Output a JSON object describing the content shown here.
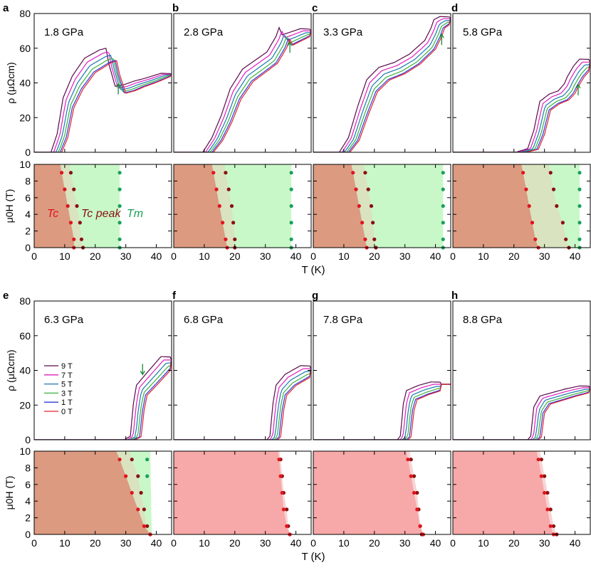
{
  "figure": {
    "rho_label": "ρ (μΩcm)",
    "field_label": "μ0H (T)",
    "t_label": "T (K)",
    "legend": [
      "9 T",
      "7 T",
      "5 T",
      "3 T",
      "1 T",
      "0 T"
    ],
    "phase_labels": {
      "tc": "Tc",
      "tcpeak": "Tc peak",
      "tm": "Tm"
    }
  },
  "chart_data": [
    {
      "panel": "a",
      "type": "line",
      "pressure": "1.8 GPa",
      "xlabel": "T (K)",
      "ylabel": "ρ (μΩcm)",
      "xlim": [
        0,
        45
      ],
      "ylim": [
        0,
        80
      ],
      "field_T": [
        9,
        7,
        5,
        3,
        1,
        0
      ],
      "curve_points": [
        [
          0,
          0
        ],
        [
          9,
          0
        ],
        [
          11,
          10
        ],
        [
          13,
          30
        ],
        [
          16,
          42
        ],
        [
          20,
          52
        ],
        [
          25,
          57
        ],
        [
          27,
          58
        ],
        [
          28,
          49
        ],
        [
          30,
          37
        ],
        [
          33,
          38
        ],
        [
          36,
          40
        ],
        [
          40,
          42
        ],
        [
          45,
          45
        ]
      ],
      "Tc": [
        [
          9,
          9
        ],
        [
          7,
          10
        ],
        [
          5,
          11
        ],
        [
          3,
          12
        ],
        [
          1,
          13
        ],
        [
          0,
          13
        ]
      ],
      "Tc_peak": [
        [
          9,
          12
        ],
        [
          7,
          13
        ],
        [
          5,
          14
        ],
        [
          3,
          15
        ],
        [
          1,
          15.5
        ],
        [
          0,
          16
        ]
      ],
      "Tm": [
        [
          9,
          28
        ],
        [
          7,
          28
        ],
        [
          5,
          28
        ],
        [
          3,
          28
        ],
        [
          1,
          28
        ],
        [
          0,
          28
        ]
      ]
    },
    {
      "panel": "b",
      "type": "line",
      "pressure": "2.8 GPa",
      "xlabel": "T (K)",
      "ylabel": "ρ (μΩcm)",
      "xlim": [
        0,
        45
      ],
      "ylim": [
        0,
        80
      ],
      "field_T": [
        9,
        7,
        5,
        3,
        1,
        0
      ],
      "curve_points": [
        [
          0,
          0
        ],
        [
          13,
          0
        ],
        [
          16,
          8
        ],
        [
          19,
          20
        ],
        [
          22,
          35
        ],
        [
          26,
          46
        ],
        [
          30,
          51
        ],
        [
          34,
          56
        ],
        [
          37,
          65
        ],
        [
          38,
          70
        ],
        [
          39,
          66
        ],
        [
          42,
          68
        ],
        [
          45,
          70
        ]
      ],
      "Tc": [
        [
          9,
          13
        ],
        [
          7,
          14
        ],
        [
          5,
          15
        ],
        [
          3,
          16
        ],
        [
          1,
          17
        ],
        [
          0,
          17.5
        ]
      ],
      "Tc_peak": [
        [
          9,
          17
        ],
        [
          7,
          18
        ],
        [
          5,
          19
        ],
        [
          3,
          19.5
        ],
        [
          1,
          20
        ],
        [
          0,
          20
        ]
      ],
      "Tm": [
        [
          9,
          38.5
        ],
        [
          7,
          38.5
        ],
        [
          5,
          38.5
        ],
        [
          3,
          38.5
        ],
        [
          1,
          38.5
        ],
        [
          0,
          38.5
        ]
      ]
    },
    {
      "panel": "c",
      "type": "line",
      "pressure": "3.3 GPa",
      "xlabel": "T (K)",
      "ylabel": "ρ (μΩcm)",
      "xlim": [
        0,
        45
      ],
      "ylim": [
        0,
        80
      ],
      "field_T": [
        9,
        7,
        5,
        3,
        1,
        0
      ],
      "curve_points": [
        [
          0,
          0
        ],
        [
          12,
          0
        ],
        [
          15,
          8
        ],
        [
          18,
          25
        ],
        [
          21,
          40
        ],
        [
          25,
          47
        ],
        [
          30,
          50
        ],
        [
          35,
          55
        ],
        [
          40,
          63
        ],
        [
          42,
          70
        ],
        [
          43,
          75
        ],
        [
          45,
          77
        ]
      ],
      "Tc": [
        [
          9,
          13
        ],
        [
          7,
          14
        ],
        [
          5,
          15
        ],
        [
          3,
          16
        ],
        [
          1,
          17
        ],
        [
          0,
          17.5
        ]
      ],
      "Tc_peak": [
        [
          9,
          17
        ],
        [
          7,
          18
        ],
        [
          5,
          19
        ],
        [
          3,
          19.5
        ],
        [
          1,
          20
        ],
        [
          0,
          20.5
        ]
      ],
      "Tm": [
        [
          9,
          42.5
        ],
        [
          7,
          42.5
        ],
        [
          5,
          42.5
        ],
        [
          3,
          42.5
        ],
        [
          1,
          42.5
        ],
        [
          0,
          42.5
        ]
      ]
    },
    {
      "panel": "d",
      "type": "line",
      "pressure": "5.8 GPa",
      "xlabel": "T (K)",
      "ylabel": "ρ (μΩcm)",
      "xlim": [
        0,
        45
      ],
      "ylim": [
        0,
        80
      ],
      "field_T": [
        9,
        7,
        5,
        3,
        1,
        0
      ],
      "curve_points": [
        [
          0,
          0
        ],
        [
          24,
          0
        ],
        [
          28,
          2
        ],
        [
          30,
          12
        ],
        [
          32,
          28
        ],
        [
          35,
          32
        ],
        [
          38,
          34
        ],
        [
          40,
          38
        ],
        [
          41,
          42
        ],
        [
          43,
          48
        ],
        [
          45,
          52
        ]
      ],
      "Tc": [
        [
          9,
          23
        ],
        [
          7,
          24
        ],
        [
          5,
          25
        ],
        [
          3,
          26
        ],
        [
          1,
          27
        ],
        [
          0,
          28
        ]
      ],
      "Tc_peak": [
        [
          9,
          32
        ],
        [
          7,
          33
        ],
        [
          5,
          34
        ],
        [
          3,
          36
        ],
        [
          1,
          37
        ],
        [
          0,
          38
        ]
      ],
      "Tm": [
        [
          9,
          41.5
        ],
        [
          7,
          41.5
        ],
        [
          5,
          41.5
        ],
        [
          3,
          41.5
        ],
        [
          1,
          41.5
        ],
        [
          0,
          41.5
        ]
      ]
    },
    {
      "panel": "e",
      "type": "line",
      "pressure": "6.3 GPa",
      "xlabel": "T (K)",
      "ylabel": "ρ (μΩcm)",
      "xlim": [
        0,
        45
      ],
      "ylim": [
        0,
        80
      ],
      "field_T": [
        9,
        7,
        5,
        3,
        1,
        0
      ],
      "curve_points": [
        [
          0,
          0
        ],
        [
          33,
          0
        ],
        [
          35,
          2
        ],
        [
          36,
          20
        ],
        [
          37,
          30
        ],
        [
          40,
          36
        ],
        [
          43,
          42
        ],
        [
          45,
          46
        ]
      ],
      "Tc": [
        [
          9,
          28
        ],
        [
          7,
          30
        ],
        [
          5,
          32
        ],
        [
          3,
          34
        ],
        [
          1,
          36
        ],
        [
          0,
          38
        ]
      ],
      "Tc_peak": [
        [
          9,
          32
        ],
        [
          7,
          34
        ],
        [
          5,
          35
        ],
        [
          3,
          36
        ],
        [
          1,
          37
        ],
        [
          0,
          38
        ]
      ],
      "Tm": [
        [
          9,
          37
        ],
        [
          7,
          37
        ]
      ]
    },
    {
      "panel": "f",
      "type": "line",
      "pressure": "6.8 GPa",
      "xlabel": "T (K)",
      "ylabel": "ρ (μΩcm)",
      "xlim": [
        0,
        45
      ],
      "ylim": [
        0,
        80
      ],
      "field_T": [
        9,
        7,
        5,
        3,
        1,
        0
      ],
      "curve_points": [
        [
          0,
          0
        ],
        [
          34,
          0
        ],
        [
          35,
          2
        ],
        [
          36,
          20
        ],
        [
          37,
          30
        ],
        [
          40,
          36
        ],
        [
          43,
          39
        ],
        [
          45,
          41
        ]
      ],
      "Tc": [
        [
          9,
          34.5
        ],
        [
          7,
          35
        ],
        [
          5,
          35.5
        ],
        [
          3,
          36
        ],
        [
          1,
          37
        ],
        [
          0,
          38
        ]
      ],
      "Tc_peak": [
        [
          9,
          35
        ],
        [
          7,
          35.5
        ],
        [
          5,
          36
        ],
        [
          3,
          37
        ],
        [
          1,
          37.5
        ],
        [
          0,
          38
        ]
      ],
      "Tm": []
    },
    {
      "panel": "g",
      "type": "line",
      "pressure": "7.8 GPa",
      "xlabel": "T (K)",
      "ylabel": "ρ (μΩcm)",
      "xlim": [
        0,
        45
      ],
      "ylim": [
        0,
        80
      ],
      "field_T": [
        9,
        7,
        5,
        3,
        1,
        0
      ],
      "curve_points": [
        [
          0,
          0
        ],
        [
          31,
          0
        ],
        [
          32,
          2
        ],
        [
          33,
          20
        ],
        [
          34,
          27
        ],
        [
          38,
          30
        ],
        [
          42,
          32
        ]
      ],
      "Tc": [
        [
          9,
          31
        ],
        [
          7,
          32
        ],
        [
          5,
          33
        ],
        [
          3,
          34
        ],
        [
          1,
          35
        ],
        [
          0,
          36
        ]
      ],
      "Tc_peak": [
        [
          9,
          32
        ],
        [
          7,
          33
        ],
        [
          5,
          34
        ],
        [
          3,
          34.5
        ],
        [
          1,
          35
        ],
        [
          0,
          35.5
        ]
      ],
      "Tm": []
    },
    {
      "panel": "h",
      "type": "line",
      "pressure": "8.8 GPa",
      "xlabel": "T (K)",
      "ylabel": "ρ (μΩcm)",
      "xlim": [
        0,
        45
      ],
      "ylim": [
        0,
        80
      ],
      "field_T": [
        9,
        7,
        5,
        3,
        1,
        0
      ],
      "curve_points": [
        [
          0,
          0
        ],
        [
          28,
          0
        ],
        [
          29,
          2
        ],
        [
          30,
          18
        ],
        [
          32,
          24
        ],
        [
          36,
          26
        ],
        [
          40,
          28
        ],
        [
          45,
          30
        ]
      ],
      "Tc": [
        [
          9,
          28
        ],
        [
          7,
          29
        ],
        [
          5,
          30
        ],
        [
          3,
          31
        ],
        [
          1,
          32
        ],
        [
          0,
          33
        ]
      ],
      "Tc_peak": [
        [
          9,
          29
        ],
        [
          7,
          30
        ],
        [
          5,
          31
        ],
        [
          3,
          32
        ],
        [
          1,
          33
        ],
        [
          0,
          34
        ]
      ],
      "Tm": []
    }
  ],
  "colors": {
    "curves": [
      "#5a0a4a",
      "#e01ec0",
      "#1a7ab0",
      "#3cb040",
      "#2a3adc",
      "#e8202a"
    ],
    "tc_dot": "#e0141e",
    "tcpeak_dot": "#8b1010",
    "tm_dot": "#1aa05a",
    "arrow": "#1a8a3a",
    "fill_sc_low": "#dc9a80",
    "fill_sc_high": "#f7a8a8",
    "fill_mid": "#d9e3c0",
    "fill_mid_high": "#f8d4d4",
    "fill_tm": "#c8f8c8"
  }
}
